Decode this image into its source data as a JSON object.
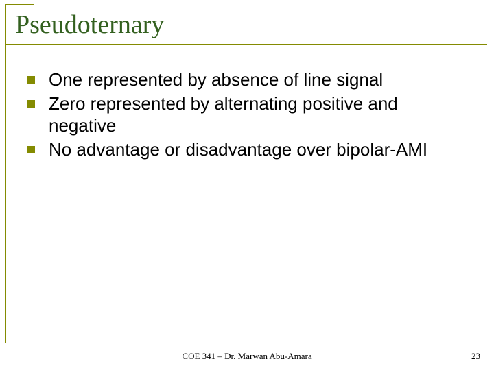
{
  "title": "Pseudoternary",
  "bullets": [
    {
      "text": "One represented by absence of line signal"
    },
    {
      "text": "Zero represented by alternating positive and negative"
    },
    {
      "text": "No advantage or disadvantage over bipolar-AMI"
    }
  ],
  "footer": {
    "center": "COE 341 – Dr. Marwan Abu-Amara",
    "page": "23"
  },
  "colors": {
    "title_color": "#33601f",
    "accent_line": "#848b01",
    "bullet_square": "#848b01",
    "text_color": "#000000",
    "background": "#ffffff"
  },
  "typography": {
    "title_fontsize": 38,
    "title_family": "Times New Roman",
    "body_fontsize": 26,
    "body_family": "Arial",
    "footer_fontsize": 13,
    "footer_family": "Times New Roman"
  },
  "layout": {
    "slide_width": 720,
    "slide_height": 540
  }
}
